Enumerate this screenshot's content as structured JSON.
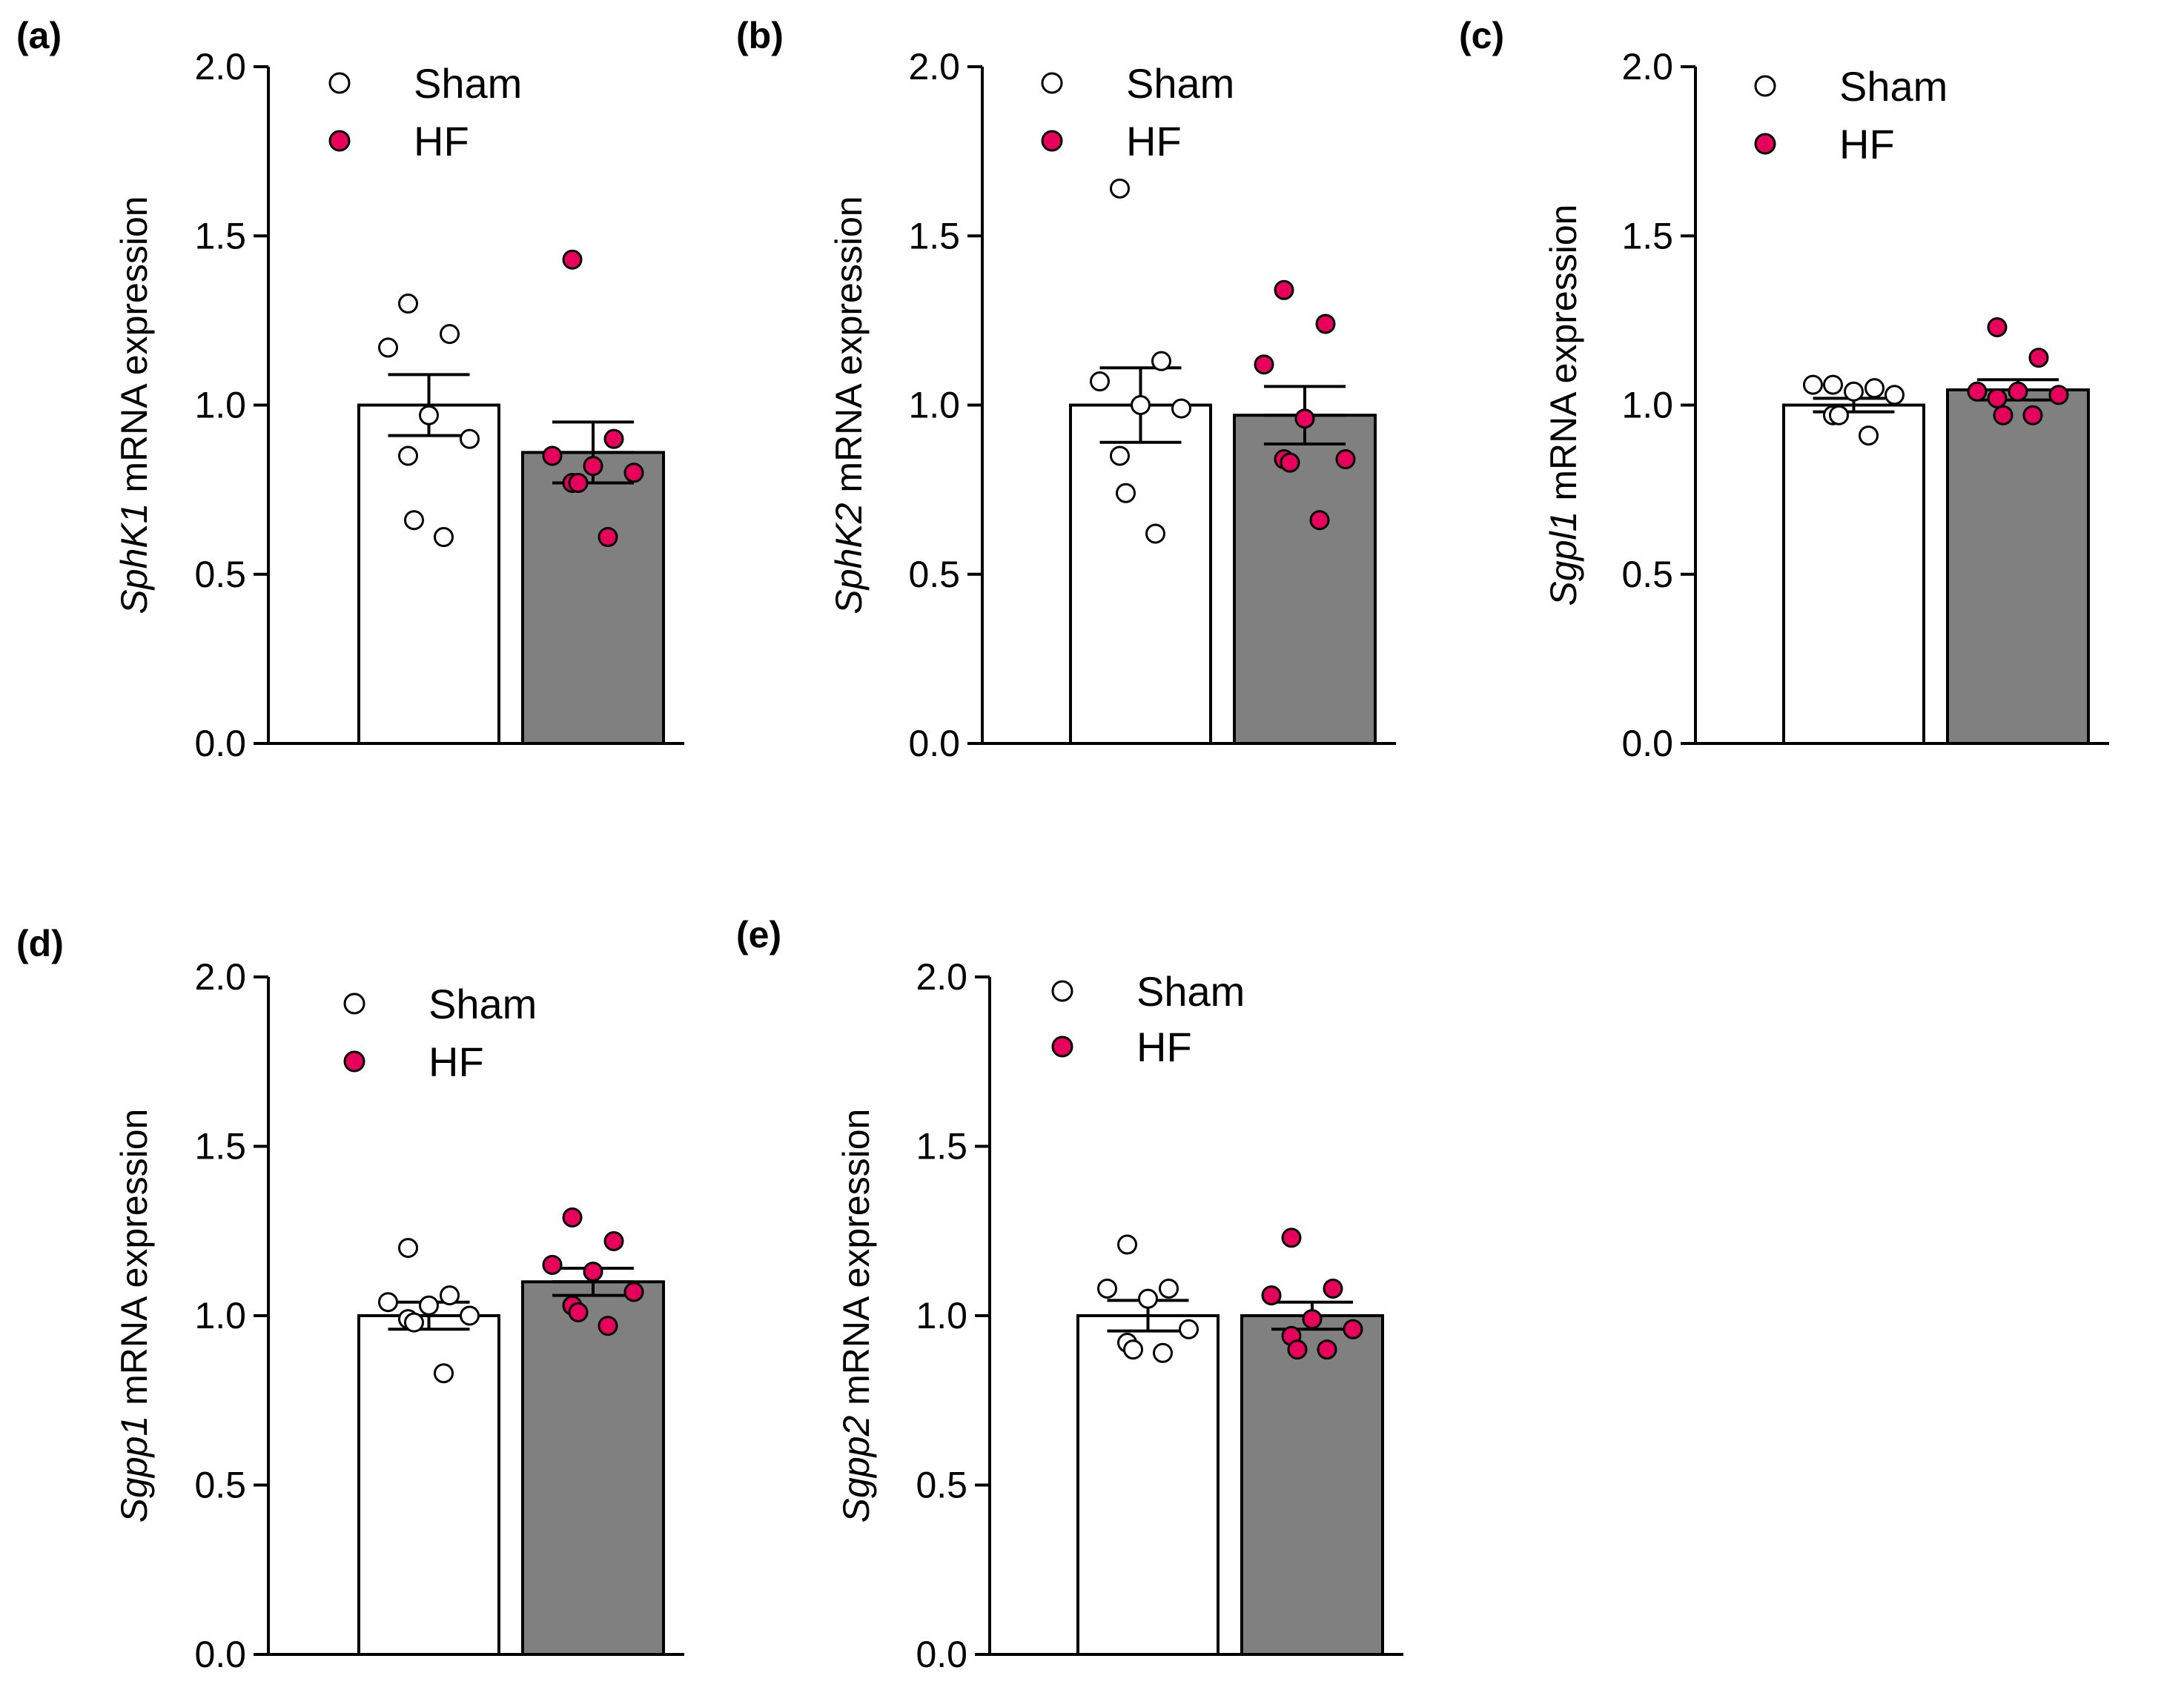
{
  "colors": {
    "sham_fill": "#ffffff",
    "hf_fill": "#e6005c",
    "sham_bar": "#ffffff",
    "hf_bar": "#808080",
    "stroke": "#000000"
  },
  "chart_data": [
    {
      "type": "bar",
      "panel_label": "(a)",
      "ylabel_gene": "SphK1",
      "ylabel_rest": " mRNA expression",
      "ylim": [
        0,
        2
      ],
      "yticks": [
        "0.0",
        "0.5",
        "1.0",
        "1.5",
        "2.0"
      ],
      "legend": [
        "Sham",
        "HF"
      ],
      "categories": [
        "Sham",
        "HF"
      ],
      "series": [
        {
          "name": "Sham",
          "mean": 1.0,
          "sem": 0.09,
          "points": [
            1.3,
            1.21,
            1.17,
            0.97,
            0.9,
            0.85,
            0.66,
            0.61
          ]
        },
        {
          "name": "HF",
          "mean": 0.86,
          "sem": 0.09,
          "points": [
            1.43,
            0.9,
            0.85,
            0.82,
            0.8,
            0.77,
            0.77,
            0.61
          ]
        }
      ]
    },
    {
      "type": "bar",
      "panel_label": "(b)",
      "ylabel_gene": "SphK2",
      "ylabel_rest": " mRNA expression",
      "ylim": [
        0,
        2
      ],
      "yticks": [
        "0.0",
        "0.5",
        "1.0",
        "1.5",
        "2.0"
      ],
      "legend": [
        "Sham",
        "HF"
      ],
      "categories": [
        "Sham",
        "HF"
      ],
      "series": [
        {
          "name": "Sham",
          "mean": 1.0,
          "sem": 0.11,
          "points": [
            1.64,
            1.13,
            1.07,
            1.0,
            0.99,
            0.85,
            0.74,
            0.62
          ]
        },
        {
          "name": "HF",
          "mean": 0.97,
          "sem": 0.085,
          "points": [
            1.34,
            1.24,
            1.12,
            0.96,
            0.84,
            0.84,
            0.83,
            0.66
          ]
        }
      ]
    },
    {
      "type": "bar",
      "panel_label": "(c)",
      "ylabel_gene": "Sgpl1",
      "ylabel_rest": " mRNA expression",
      "ylim": [
        0,
        2
      ],
      "yticks": [
        "0.0",
        "0.5",
        "1.0",
        "1.5",
        "2.0"
      ],
      "legend": [
        "Sham",
        "HF"
      ],
      "categories": [
        "Sham",
        "HF"
      ],
      "series": [
        {
          "name": "Sham",
          "mean": 1.0,
          "sem": 0.02,
          "points": [
            1.06,
            1.05,
            1.06,
            1.04,
            1.03,
            0.97,
            0.97,
            0.91
          ]
        },
        {
          "name": "HF",
          "mean": 1.045,
          "sem": 0.03,
          "points": [
            1.23,
            1.14,
            1.04,
            1.04,
            1.03,
            1.02,
            0.97,
            0.97
          ]
        }
      ]
    },
    {
      "type": "bar",
      "panel_label": "(d)",
      "ylabel_gene": "Sgpp1",
      "ylabel_rest": " mRNA expression",
      "ylim": [
        0,
        2
      ],
      "yticks": [
        "0.0",
        "0.5",
        "1.0",
        "1.5",
        "2.0"
      ],
      "legend": [
        "Sham",
        "HF"
      ],
      "categories": [
        "Sham",
        "HF"
      ],
      "series": [
        {
          "name": "Sham",
          "mean": 1.0,
          "sem": 0.04,
          "points": [
            1.2,
            1.06,
            1.04,
            1.03,
            1.0,
            0.99,
            0.98,
            0.83
          ]
        },
        {
          "name": "HF",
          "mean": 1.1,
          "sem": 0.04,
          "points": [
            1.29,
            1.22,
            1.15,
            1.13,
            1.07,
            1.03,
            1.01,
            0.97
          ]
        }
      ]
    },
    {
      "type": "bar",
      "panel_label": "(e)",
      "ylabel_gene": "Sgpp2",
      "ylabel_rest": " mRNA expression",
      "ylim": [
        0,
        2
      ],
      "yticks": [
        "0.0",
        "0.5",
        "1.0",
        "1.5",
        "2.0"
      ],
      "legend": [
        "Sham",
        "HF"
      ],
      "categories": [
        "Sham",
        "HF"
      ],
      "series": [
        {
          "name": "Sham",
          "mean": 1.0,
          "sem": 0.045,
          "points": [
            1.21,
            1.08,
            1.08,
            1.05,
            0.96,
            0.92,
            0.9,
            0.89
          ]
        },
        {
          "name": "HF",
          "mean": 1.0,
          "sem": 0.04,
          "points": [
            1.23,
            1.08,
            1.06,
            0.99,
            0.96,
            0.94,
            0.9,
            0.9
          ]
        }
      ]
    }
  ]
}
